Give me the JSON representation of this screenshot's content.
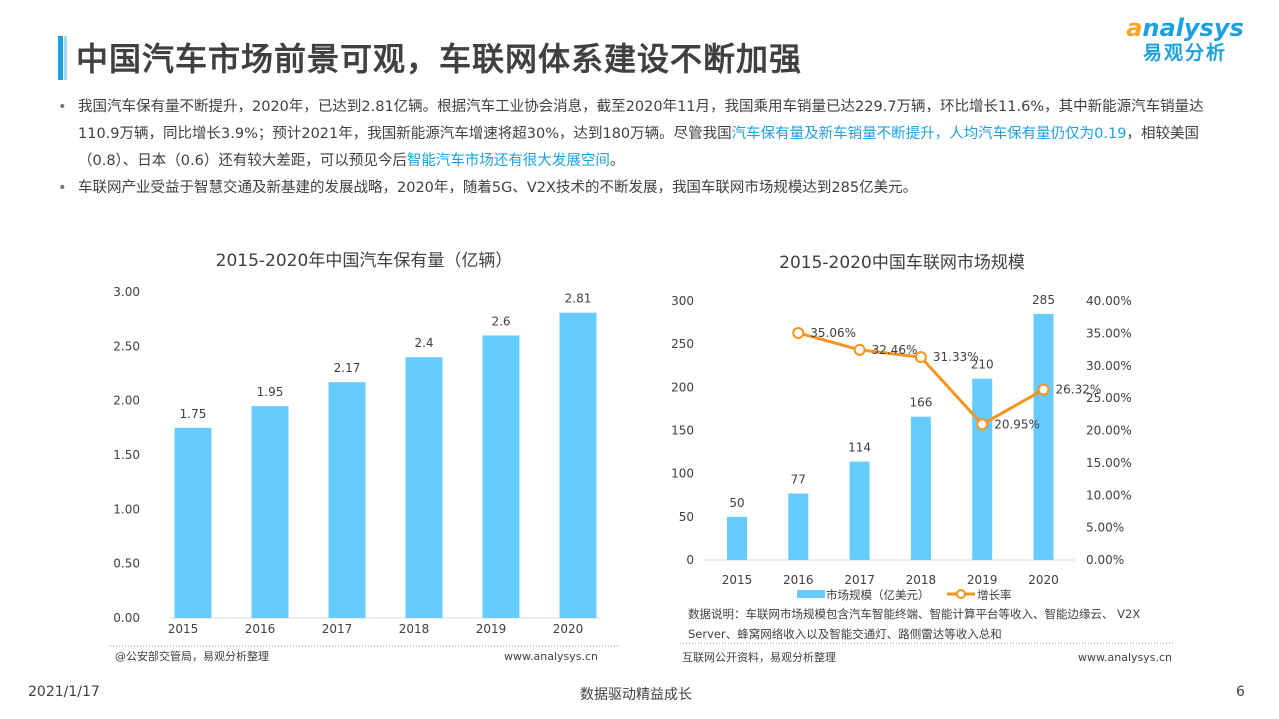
{
  "header": {
    "title": "中国汽车市场前景可观，车联网体系建设不断加强",
    "logo_en": "nalysys",
    "logo_en_a": "a",
    "logo_cn": "易观分析"
  },
  "bullets": [
    {
      "segments": [
        {
          "text": "我国汽车保有量不断提升，2020年，已达到2.81亿辆。根据汽车工业协会消息，截至2020年11月，我国乘用车销量已达229.7万辆，环比增长11.6%，其中新能源汽车销量达110.9万辆，同比增长3.9%；预计2021年，我国新能源汽车增速将超30%，达到180万辆。尽管我国",
          "hl": false
        },
        {
          "text": "汽车保有量及新车销量不断提升，人均汽车保有量仍仅为0.19",
          "hl": true
        },
        {
          "text": "，相较美国（0.8）、日本（0.6）还有较大差距，可以预见今后",
          "hl": false
        },
        {
          "text": "智能汽车市场还有很大发展空间",
          "hl": true
        },
        {
          "text": "。",
          "hl": false
        }
      ]
    },
    {
      "segments": [
        {
          "text": "车联网产业受益于智慧交通及新基建的发展战略，2020年，随着5G、V2X技术的不断发展，我国车联网市场规模达到285亿美元。",
          "hl": false
        }
      ]
    }
  ],
  "colors": {
    "accent": "#1ba1e2",
    "bar": "#66ccff",
    "line": "#f7941d"
  },
  "chart_data": [
    {
      "type": "bar",
      "title": "2015-2020年中国汽车保有量（亿辆）",
      "categories": [
        "2015",
        "2016",
        "2017",
        "2018",
        "2019",
        "2020"
      ],
      "values": [
        1.75,
        1.95,
        2.17,
        2.4,
        2.6,
        2.81
      ],
      "data_labels": [
        "1.75",
        "1.95",
        "2.17",
        "2.4",
        "2.6",
        "2.81"
      ],
      "yticks": [
        "0.00",
        "0.50",
        "1.00",
        "1.50",
        "2.00",
        "2.50",
        "3.00"
      ],
      "ylim": [
        0,
        3
      ],
      "grid": false,
      "source": "@公安部交管局，易观分析整理",
      "site": "www.analysys.cn"
    },
    {
      "type": "bar+line",
      "title": "2015-2020中国车联网市场规模",
      "categories": [
        "2015",
        "2016",
        "2017",
        "2018",
        "2019",
        "2020"
      ],
      "series": [
        {
          "name": "市场规模（亿美元）",
          "type": "bar",
          "axis": "left",
          "values": [
            50,
            77,
            114,
            166,
            210,
            285
          ]
        },
        {
          "name": "增长率",
          "type": "line",
          "axis": "right",
          "values": [
            null,
            35.06,
            32.46,
            31.33,
            20.95,
            26.32
          ],
          "labels": [
            "",
            "35.06%",
            "32.46%",
            "31.33%",
            "20.95%",
            "26.32%"
          ]
        }
      ],
      "yticks_left": [
        "0",
        "50",
        "100",
        "150",
        "200",
        "250",
        "300"
      ],
      "ylim_left": [
        0,
        300
      ],
      "yticks_right": [
        "0.00%",
        "5.00%",
        "10.00%",
        "15.00%",
        "20.00%",
        "25.00%",
        "30.00%",
        "35.00%",
        "40.00%"
      ],
      "ylim_right": [
        0,
        40
      ],
      "legend_position": "bottom",
      "grid": false,
      "note": "数据说明：车联网市场规模包含汽车智能终端、智能计算平台等收入、智能边缘云、 V2X Server、蜂窝网络收入以及智能交通灯、路侧雷达等收入总和",
      "source": "互联网公开资料，易观分析整理",
      "site": "www.analysys.cn"
    }
  ],
  "footer": {
    "date": "2021/1/17",
    "slogan": "数据驱动精益成长",
    "page": "6"
  }
}
